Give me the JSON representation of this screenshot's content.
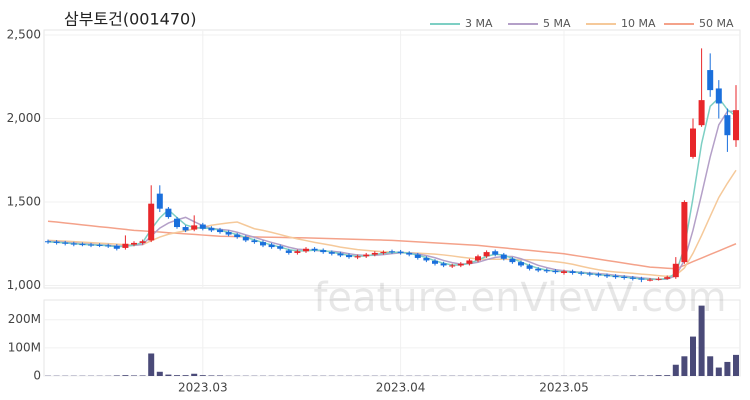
{
  "chart_data": {
    "type": "candlestick",
    "title": "삼부토건(001470)",
    "watermark": "feature.enVievV.com",
    "up_color": "#e8262a",
    "down_color": "#1a6fdc",
    "grid": true,
    "categories": [
      null,
      null,
      null,
      null,
      null,
      null,
      null,
      null,
      null,
      null,
      null,
      null,
      null,
      null,
      null,
      null,
      null,
      null,
      "2023.03",
      null,
      null,
      null,
      null,
      null,
      null,
      null,
      null,
      null,
      null,
      null,
      null,
      null,
      null,
      null,
      null,
      null,
      null,
      null,
      null,
      null,
      null,
      "2023.04",
      null,
      null,
      null,
      null,
      null,
      null,
      null,
      null,
      null,
      null,
      null,
      null,
      null,
      null,
      null,
      null,
      null,
      null,
      "2023.05",
      null,
      null,
      null,
      null,
      null,
      null,
      null,
      null,
      null,
      null,
      null,
      null,
      null,
      null,
      null,
      null,
      null,
      null,
      null,
      null
    ],
    "open": [
      1265,
      1262,
      1257,
      1252,
      1248,
      1245,
      1243,
      1240,
      1238,
      1225,
      1245,
      1255,
      1270,
      1550,
      1460,
      1400,
      1350,
      1335,
      1365,
      1345,
      1335,
      1320,
      1305,
      1290,
      1270,
      1260,
      1245,
      1235,
      1210,
      1195,
      1205,
      1220,
      1212,
      1200,
      1192,
      1182,
      1168,
      1175,
      1185,
      1195,
      1205,
      1203,
      1195,
      1185,
      1165,
      1148,
      1132,
      1115,
      1120,
      1130,
      1150,
      1175,
      1205,
      1185,
      1160,
      1140,
      1120,
      1100,
      1092,
      1088,
      1075,
      1085,
      1077,
      1072,
      1068,
      1062,
      1058,
      1052,
      1047,
      1042,
      1030,
      1035,
      1040,
      1050,
      1140,
      1770,
      1960,
      2290,
      2180,
      2020,
      1870
    ],
    "high": [
      1275,
      1272,
      1267,
      1262,
      1258,
      1255,
      1253,
      1250,
      1248,
      1300,
      1265,
      1275,
      1600,
      1600,
      1470,
      1410,
      1360,
      1420,
      1375,
      1355,
      1345,
      1330,
      1315,
      1300,
      1280,
      1270,
      1255,
      1245,
      1220,
      1215,
      1230,
      1230,
      1222,
      1210,
      1202,
      1192,
      1185,
      1195,
      1205,
      1210,
      1215,
      1213,
      1205,
      1195,
      1175,
      1158,
      1142,
      1130,
      1140,
      1160,
      1185,
      1210,
      1215,
      1195,
      1170,
      1150,
      1130,
      1110,
      1102,
      1098,
      1095,
      1095,
      1087,
      1082,
      1078,
      1072,
      1068,
      1062,
      1057,
      1052,
      1045,
      1050,
      1060,
      1170,
      1510,
      2000,
      2420,
      2390,
      2230,
      2060,
      2200
    ],
    "low": [
      1250,
      1245,
      1240,
      1235,
      1235,
      1230,
      1230,
      1225,
      1210,
      1215,
      1235,
      1245,
      1260,
      1440,
      1400,
      1340,
      1320,
      1325,
      1330,
      1320,
      1310,
      1295,
      1280,
      1260,
      1250,
      1230,
      1220,
      1210,
      1185,
      1185,
      1195,
      1200,
      1190,
      1180,
      1170,
      1160,
      1158,
      1165,
      1175,
      1185,
      1190,
      1185,
      1175,
      1155,
      1140,
      1120,
      1110,
      1105,
      1110,
      1120,
      1140,
      1165,
      1175,
      1150,
      1130,
      1110,
      1090,
      1080,
      1075,
      1070,
      1065,
      1065,
      1060,
      1055,
      1050,
      1045,
      1040,
      1035,
      1030,
      1020,
      1025,
      1030,
      1035,
      1040,
      1130,
      1760,
      1950,
      2130,
      2000,
      1800,
      1830
    ],
    "close": [
      1260,
      1255,
      1250,
      1245,
      1245,
      1240,
      1240,
      1235,
      1220,
      1250,
      1255,
      1265,
      1490,
      1460,
      1410,
      1350,
      1330,
      1360,
      1340,
      1330,
      1320,
      1305,
      1290,
      1270,
      1260,
      1240,
      1230,
      1220,
      1195,
      1205,
      1220,
      1210,
      1200,
      1190,
      1180,
      1170,
      1175,
      1185,
      1195,
      1200,
      1200,
      1195,
      1185,
      1165,
      1150,
      1130,
      1120,
      1120,
      1130,
      1150,
      1175,
      1200,
      1185,
      1160,
      1140,
      1120,
      1100,
      1090,
      1085,
      1080,
      1085,
      1075,
      1070,
      1065,
      1060,
      1055,
      1050,
      1045,
      1040,
      1035,
      1035,
      1040,
      1050,
      1130,
      1500,
      1940,
      2110,
      2170,
      2090,
      1900,
      2050
    ],
    "ma": [
      {
        "name": "3 MA",
        "color": "#7dcfc4",
        "values": [
          1262,
          1258,
          1255,
          1250,
          1247,
          1243,
          1242,
          1238,
          1232,
          1235,
          1242,
          1257,
          1337,
          1405,
          1453,
          1407,
          1363,
          1347,
          1343,
          1343,
          1330,
          1318,
          1305,
          1288,
          1273,
          1257,
          1243,
          1230,
          1215,
          1207,
          1207,
          1212,
          1210,
          1200,
          1190,
          1180,
          1175,
          1177,
          1185,
          1193,
          1198,
          1198,
          1193,
          1182,
          1167,
          1148,
          1133,
          1123,
          1123,
          1133,
          1152,
          1175,
          1187,
          1182,
          1162,
          1140,
          1120,
          1103,
          1092,
          1085,
          1083,
          1080,
          1077,
          1070,
          1065,
          1060,
          1055,
          1050,
          1045,
          1040,
          1037,
          1037,
          1042,
          1073,
          1227,
          1523,
          1850,
          2073,
          2123,
          2053,
          2013
        ]
      },
      {
        "name": "5 MA",
        "color": "#b4a0c8",
        "values": [
          1265,
          1262,
          1258,
          1254,
          1251,
          1247,
          1244,
          1241,
          1236,
          1237,
          1240,
          1245,
          1296,
          1344,
          1374,
          1393,
          1408,
          1382,
          1358,
          1342,
          1336,
          1331,
          1319,
          1303,
          1289,
          1273,
          1258,
          1244,
          1229,
          1218,
          1214,
          1210,
          1206,
          1205,
          1200,
          1190,
          1183,
          1180,
          1181,
          1185,
          1191,
          1195,
          1195,
          1189,
          1179,
          1166,
          1150,
          1137,
          1128,
          1130,
          1139,
          1155,
          1168,
          1174,
          1174,
          1160,
          1141,
          1121,
          1107,
          1095,
          1088,
          1083,
          1079,
          1075,
          1071,
          1067,
          1061,
          1056,
          1051,
          1046,
          1041,
          1037,
          1038,
          1058,
          1151,
          1331,
          1546,
          1770,
          1962,
          2042,
          2044
        ]
      },
      {
        "name": "10 MA",
        "color": "#f5c99a",
        "values": [
          1270,
          1268,
          1266,
          1263,
          1260,
          1257,
          1254,
          1251,
          1248,
          1244,
          1244,
          1244,
          1268,
          1290,
          1307,
          1318,
          1327,
          1339,
          1350,
          1361,
          1368,
          1375,
          1380,
          1360,
          1340,
          1330,
          1318,
          1305,
          1291,
          1279,
          1269,
          1258,
          1249,
          1240,
          1230,
          1222,
          1215,
          1210,
          1206,
          1202,
          1200,
          1198,
          1196,
          1194,
          1191,
          1188,
          1183,
          1177,
          1170,
          1164,
          1159,
          1157,
          1157,
          1157,
          1156,
          1155,
          1154,
          1152,
          1148,
          1143,
          1136,
          1127,
          1115,
          1104,
          1094,
          1086,
          1081,
          1077,
          1073,
          1068,
          1064,
          1059,
          1055,
          1061,
          1105,
          1193,
          1300,
          1414,
          1527,
          1612,
          1690
        ]
      },
      {
        "name": "50 MA",
        "color": "#f4a28a",
        "values": [
          1385,
          1380,
          1374,
          1369,
          1363,
          1358,
          1352,
          1347,
          1341,
          1336,
          1330,
          1327,
          1323,
          1320,
          1316,
          1313,
          1309,
          1306,
          1302,
          1299,
          1295,
          1294,
          1293,
          1292,
          1291,
          1290,
          1289,
          1288,
          1287,
          1286,
          1285,
          1284,
          1282,
          1281,
          1279,
          1278,
          1276,
          1275,
          1273,
          1272,
          1270,
          1267,
          1264,
          1261,
          1258,
          1255,
          1252,
          1249,
          1246,
          1243,
          1240,
          1235,
          1230,
          1225,
          1220,
          1215,
          1210,
          1205,
          1200,
          1195,
          1190,
          1182,
          1174,
          1166,
          1158,
          1150,
          1142,
          1134,
          1126,
          1118,
          1110,
          1107,
          1103,
          1100,
          1121,
          1143,
          1164,
          1186,
          1207,
          1229,
          1250
        ]
      }
    ],
    "volume": {
      "color": "#4a4a78",
      "values": [
        1000000,
        1000000,
        1000000,
        1000000,
        1000000,
        1000000,
        1000000,
        1000000,
        2000000,
        3000000,
        2000000,
        2000000,
        80000000,
        15000000,
        5000000,
        3000000,
        3000000,
        8000000,
        3000000,
        2000000,
        2000000,
        1000000,
        1000000,
        1000000,
        1000000,
        1000000,
        1000000,
        1000000,
        1000000,
        1000000,
        1000000,
        1000000,
        1000000,
        1000000,
        1000000,
        1000000,
        1000000,
        1000000,
        1000000,
        1000000,
        1000000,
        1000000,
        1000000,
        1000000,
        1000000,
        1000000,
        1000000,
        1000000,
        1000000,
        1000000,
        1000000,
        1000000,
        1000000,
        1000000,
        1000000,
        1000000,
        1000000,
        1000000,
        1000000,
        1000000,
        1000000,
        1000000,
        1000000,
        1000000,
        1000000,
        1000000,
        1000000,
        1000000,
        2000000,
        2000000,
        2000000,
        3000000,
        3000000,
        40000000,
        70000000,
        140000000,
        250000000,
        70000000,
        30000000,
        50000000,
        75000000
      ]
    },
    "ylim": [
      985,
      2530
    ],
    "yticks": [
      {
        "value": 1000,
        "label": "1,000"
      },
      {
        "value": 1500,
        "label": "1,500"
      },
      {
        "value": 2000,
        "label": "2,000"
      },
      {
        "value": 2500,
        "label": "2,500"
      }
    ],
    "y2lim": [
      0,
      270000000
    ],
    "y2ticks": [
      0,
      {
        "value": 100000000,
        "label": "100M"
      },
      {
        "value": 200000000,
        "label": "200M"
      }
    ]
  }
}
